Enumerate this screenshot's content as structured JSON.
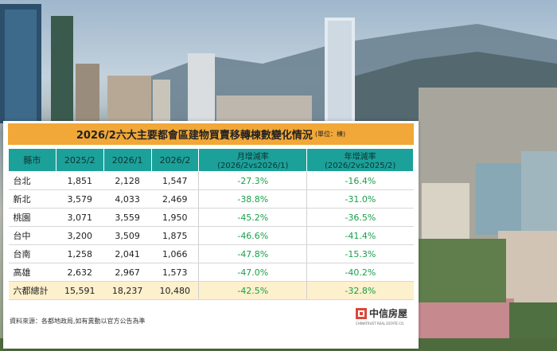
{
  "title": "2026/2六大主要都會區建物買賣移轉棟數變化情況",
  "unit": "(單位：棟)",
  "headers": {
    "region": "縣市",
    "col1": "2025/2",
    "col2": "2026/1",
    "col3": "2026/2",
    "mom_line1": "月增減率",
    "mom_line2": "(2026/2vs2026/1)",
    "yoy_line1": "年增減率",
    "yoy_line2": "(2026/2vs2025/2)"
  },
  "rows": [
    {
      "region": "台北",
      "v1": "1,851",
      "v2": "2,128",
      "v3": "1,547",
      "mom": "-27.3%",
      "yoy": "-16.4%"
    },
    {
      "region": "新北",
      "v1": "3,579",
      "v2": "4,033",
      "v3": "2,469",
      "mom": "-38.8%",
      "yoy": "-31.0%"
    },
    {
      "region": "桃園",
      "v1": "3,071",
      "v2": "3,559",
      "v3": "1,950",
      "mom": "-45.2%",
      "yoy": "-36.5%"
    },
    {
      "region": "台中",
      "v1": "3,200",
      "v2": "3,509",
      "v3": "1,875",
      "mom": "-46.6%",
      "yoy": "-41.4%"
    },
    {
      "region": "台南",
      "v1": "1,258",
      "v2": "2,041",
      "v3": "1,066",
      "mom": "-47.8%",
      "yoy": "-15.3%"
    },
    {
      "region": "高雄",
      "v1": "2,632",
      "v2": "2,967",
      "v3": "1,573",
      "mom": "-47.0%",
      "yoy": "-40.2%"
    },
    {
      "region": "六都總計",
      "v1": "15,591",
      "v2": "18,237",
      "v3": "10,480",
      "mom": "-42.5%",
      "yoy": "-32.8%"
    }
  ],
  "source": "資料來源：各都地政局,如有異動以官方公告為準",
  "logo": {
    "name": "中信房屋",
    "en": "CHINATRUST REAL ESTATE CO."
  },
  "colors": {
    "title_bg": "#f1a838",
    "header_bg": "#1ba19a",
    "pct_text": "#17a04a",
    "total_bg": "#fdf0cc",
    "logo_red": "#d8483a"
  }
}
